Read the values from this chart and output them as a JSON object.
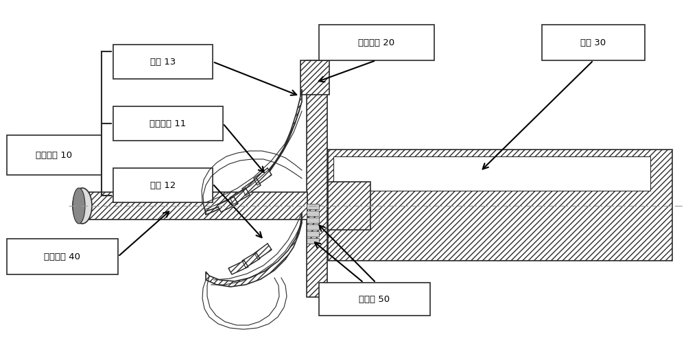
{
  "bg_color": "#ffffff",
  "line_color": "#2a2a2a",
  "labels": {
    "lunpenti": "叶轮本体 10",
    "lungai": "轮盖 13",
    "yepianyepian": "叶轮叶片 11",
    "lungu": "轮毅 12",
    "yelunyupan": "叶轮轮盘 20",
    "zhuzou": "主轴 30",
    "yelunyugan": "叶轮拉杆 40",
    "duanmianzhi": "端面齿 50"
  },
  "fig_width": 10.0,
  "fig_height": 5.16
}
